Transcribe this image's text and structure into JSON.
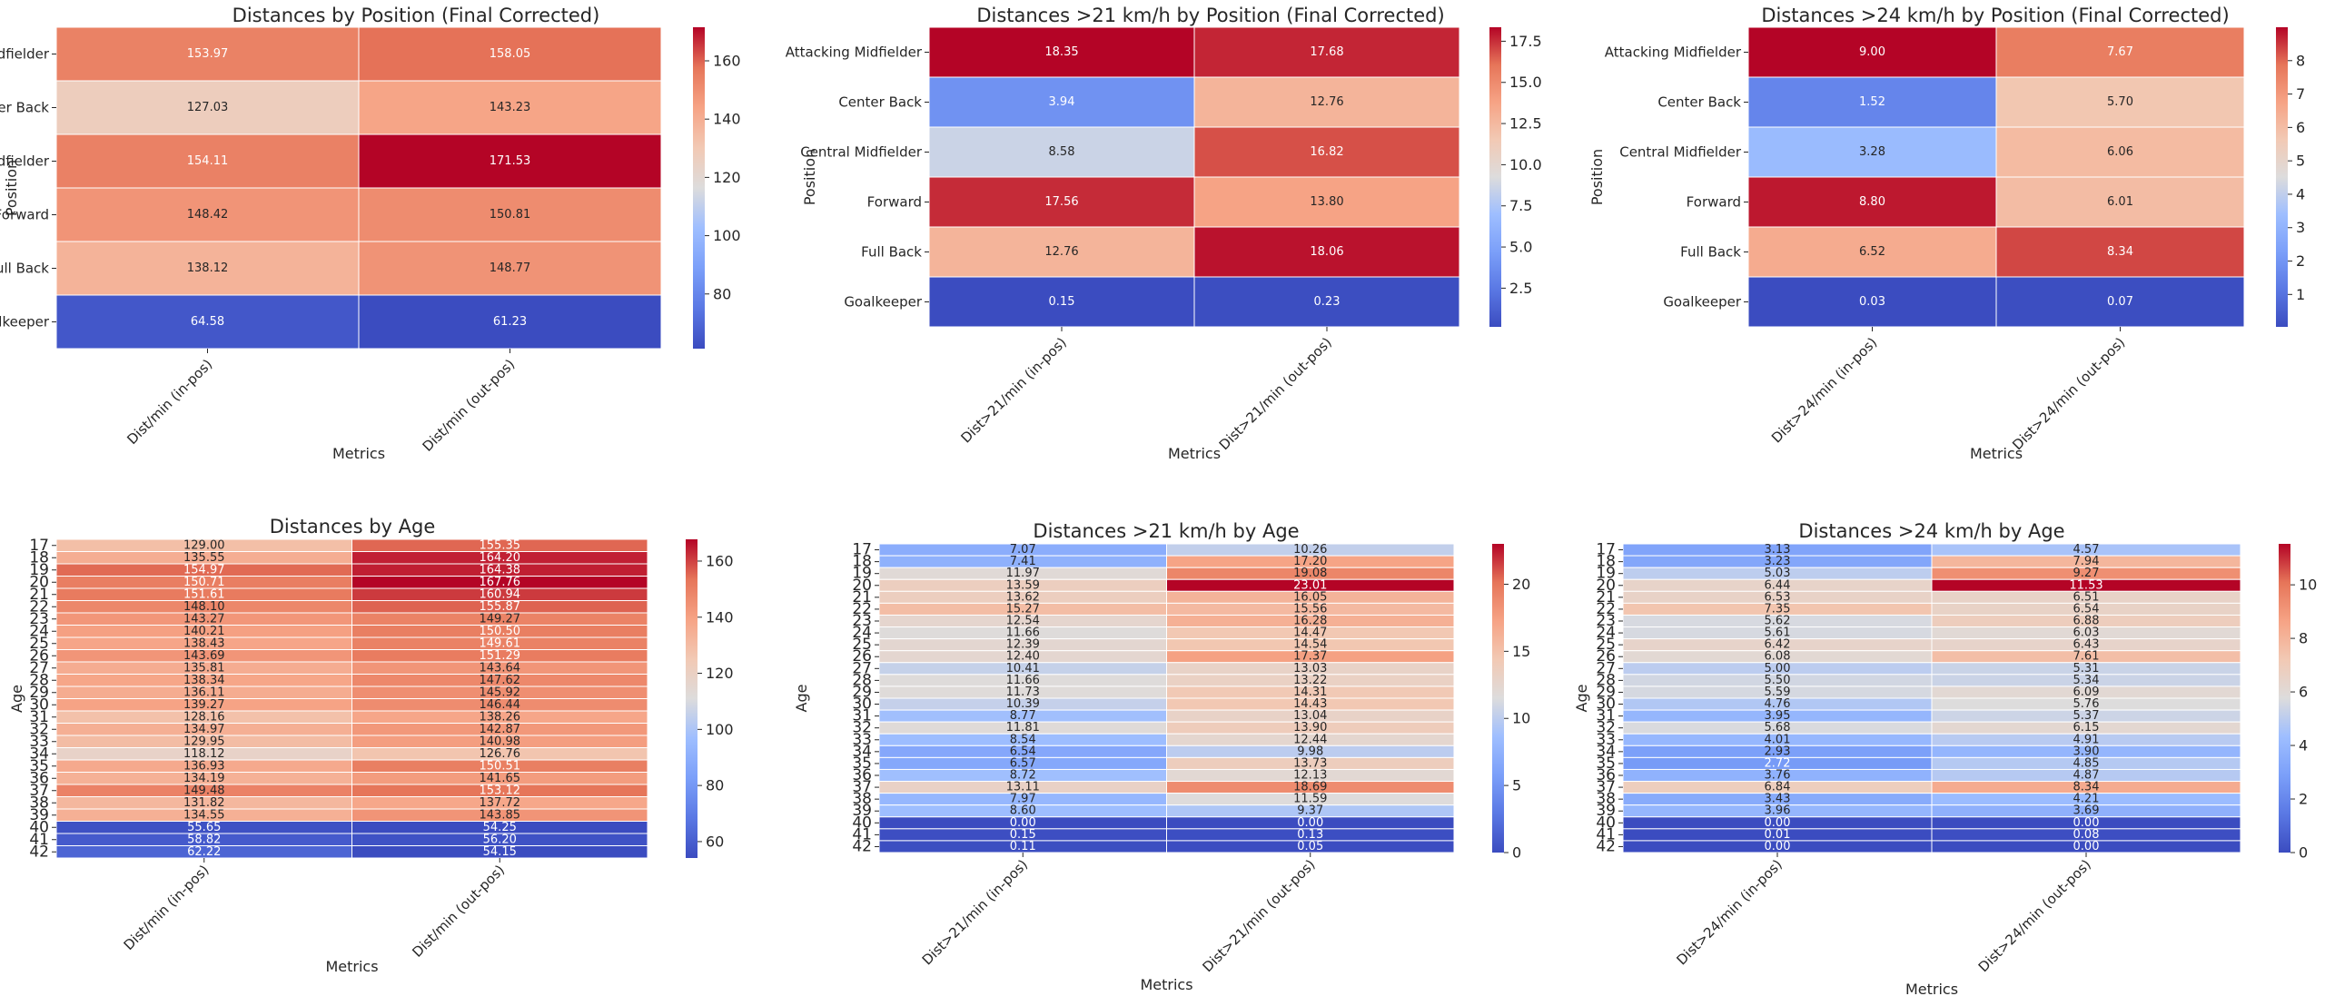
{
  "chart_data": [
    {
      "type": "heatmap",
      "title": "Distances by Position (Final Corrected)",
      "xlabel": "Metrics",
      "ylabel": "Position",
      "x": [
        "Dist/min (in-pos)",
        "Dist/min (out-pos)"
      ],
      "y": [
        "Attacking Midfielder",
        "Center Back",
        "Central Midfielder",
        "Forward",
        "Full Back",
        "Goalkeeper"
      ],
      "values": [
        [
          153.97,
          158.05
        ],
        [
          127.03,
          143.23
        ],
        [
          154.11,
          171.53
        ],
        [
          148.42,
          150.81
        ],
        [
          138.12,
          148.77
        ],
        [
          64.58,
          61.23
        ]
      ],
      "value_labels": [
        [
          "153.97",
          "158.05"
        ],
        [
          "127.03",
          "143.23"
        ],
        [
          "154.11",
          "171.53"
        ],
        [
          "148.42",
          "150.81"
        ],
        [
          "138.12",
          "148.77"
        ],
        [
          "64.58",
          "61.23"
        ]
      ],
      "colormap": "coolwarm",
      "vmin": 61.23,
      "vmax": 171.53,
      "colorbar_ticks": [
        80,
        100,
        120,
        140,
        160
      ]
    },
    {
      "type": "heatmap",
      "title": "Distances >21 km/h by Position (Final Corrected)",
      "xlabel": "Metrics",
      "ylabel": "Position",
      "x": [
        "Dist>21/min (in-pos)",
        "Dist>21/min (out-pos)"
      ],
      "y": [
        "Attacking Midfielder",
        "Center Back",
        "Central Midfielder",
        "Forward",
        "Full Back",
        "Goalkeeper"
      ],
      "values": [
        [
          18.35,
          17.68
        ],
        [
          3.94,
          12.76
        ],
        [
          8.58,
          16.82
        ],
        [
          17.56,
          13.8
        ],
        [
          12.76,
          18.06
        ],
        [
          0.15,
          0.23
        ]
      ],
      "value_labels": [
        [
          "18.35",
          "17.68"
        ],
        [
          "3.94",
          "12.76"
        ],
        [
          "8.58",
          "16.82"
        ],
        [
          "17.56",
          "13.80"
        ],
        [
          "12.76",
          "18.06"
        ],
        [
          "0.15",
          "0.23"
        ]
      ],
      "colormap": "coolwarm",
      "vmin": 0.15,
      "vmax": 18.35,
      "colorbar_ticks": [
        2.5,
        5.0,
        7.5,
        10.0,
        12.5,
        15.0,
        17.5
      ],
      "colorbar_tick_labels": [
        "2.5",
        "5.0",
        "7.5",
        "10.0",
        "12.5",
        "15.0",
        "17.5"
      ]
    },
    {
      "type": "heatmap",
      "title": "Distances >24 km/h by Position (Final Corrected)",
      "xlabel": "Metrics",
      "ylabel": "Position",
      "x": [
        "Dist>24/min (in-pos)",
        "Dist>24/min (out-pos)"
      ],
      "y": [
        "Attacking Midfielder",
        "Center Back",
        "Central Midfielder",
        "Forward",
        "Full Back",
        "Goalkeeper"
      ],
      "values": [
        [
          9.0,
          7.67
        ],
        [
          1.52,
          5.7
        ],
        [
          3.28,
          6.06
        ],
        [
          8.8,
          6.01
        ],
        [
          6.52,
          8.34
        ],
        [
          0.03,
          0.07
        ]
      ],
      "value_labels": [
        [
          "9.00",
          "7.67"
        ],
        [
          "1.52",
          "5.70"
        ],
        [
          "3.28",
          "6.06"
        ],
        [
          "8.80",
          "6.01"
        ],
        [
          "6.52",
          "8.34"
        ],
        [
          "0.03",
          "0.07"
        ]
      ],
      "colormap": "coolwarm",
      "vmin": 0.03,
      "vmax": 9.0,
      "colorbar_ticks": [
        1,
        2,
        3,
        4,
        5,
        6,
        7,
        8
      ]
    },
    {
      "type": "heatmap",
      "title": "Distances by Age",
      "xlabel": "Metrics",
      "ylabel": "Age",
      "x": [
        "Dist/min (in-pos)",
        "Dist/min (out-pos)"
      ],
      "y": [
        "17",
        "18",
        "19",
        "20",
        "21",
        "22",
        "23",
        "24",
        "25",
        "26",
        "27",
        "28",
        "29",
        "30",
        "31",
        "32",
        "33",
        "34",
        "35",
        "36",
        "37",
        "38",
        "39",
        "40",
        "41",
        "42"
      ],
      "values": [
        [
          129.0,
          155.35
        ],
        [
          135.55,
          164.2
        ],
        [
          154.97,
          164.38
        ],
        [
          150.71,
          167.76
        ],
        [
          151.61,
          160.94
        ],
        [
          148.1,
          155.87
        ],
        [
          143.27,
          149.27
        ],
        [
          140.21,
          150.5
        ],
        [
          138.43,
          149.61
        ],
        [
          143.69,
          151.29
        ],
        [
          135.81,
          143.64
        ],
        [
          138.34,
          147.62
        ],
        [
          136.11,
          145.92
        ],
        [
          139.27,
          146.44
        ],
        [
          128.16,
          138.26
        ],
        [
          134.97,
          142.87
        ],
        [
          129.95,
          140.98
        ],
        [
          118.12,
          126.76
        ],
        [
          136.93,
          150.51
        ],
        [
          134.19,
          141.65
        ],
        [
          149.48,
          153.12
        ],
        [
          131.82,
          137.72
        ],
        [
          134.55,
          143.85
        ],
        [
          55.65,
          54.25
        ],
        [
          58.82,
          56.2
        ],
        [
          62.22,
          54.15
        ]
      ],
      "value_labels": [
        [
          "129.00",
          "155.35"
        ],
        [
          "135.55",
          "164.20"
        ],
        [
          "154.97",
          "164.38"
        ],
        [
          "150.71",
          "167.76"
        ],
        [
          "151.61",
          "160.94"
        ],
        [
          "148.10",
          "155.87"
        ],
        [
          "143.27",
          "149.27"
        ],
        [
          "140.21",
          "150.50"
        ],
        [
          "138.43",
          "149.61"
        ],
        [
          "143.69",
          "151.29"
        ],
        [
          "135.81",
          "143.64"
        ],
        [
          "138.34",
          "147.62"
        ],
        [
          "136.11",
          "145.92"
        ],
        [
          "139.27",
          "146.44"
        ],
        [
          "128.16",
          "138.26"
        ],
        [
          "134.97",
          "142.87"
        ],
        [
          "129.95",
          "140.98"
        ],
        [
          "118.12",
          "126.76"
        ],
        [
          "136.93",
          "150.51"
        ],
        [
          "134.19",
          "141.65"
        ],
        [
          "149.48",
          "153.12"
        ],
        [
          "131.82",
          "137.72"
        ],
        [
          "134.55",
          "143.85"
        ],
        [
          "55.65",
          "54.25"
        ],
        [
          "58.82",
          "56.20"
        ],
        [
          "62.22",
          "54.15"
        ]
      ],
      "colormap": "coolwarm",
      "vmin": 54.15,
      "vmax": 167.76,
      "colorbar_ticks": [
        60,
        80,
        100,
        120,
        140,
        160
      ]
    },
    {
      "type": "heatmap",
      "title": "Distances >21 km/h by Age",
      "xlabel": "Metrics",
      "ylabel": "Age",
      "x": [
        "Dist>21/min (in-pos)",
        "Dist>21/min (out-pos)"
      ],
      "y": [
        "17",
        "18",
        "19",
        "20",
        "21",
        "22",
        "23",
        "24",
        "25",
        "26",
        "27",
        "28",
        "29",
        "30",
        "31",
        "32",
        "33",
        "34",
        "35",
        "36",
        "37",
        "38",
        "39",
        "40",
        "41",
        "42"
      ],
      "values": [
        [
          7.07,
          10.26
        ],
        [
          7.41,
          17.2
        ],
        [
          11.97,
          19.08
        ],
        [
          13.59,
          23.01
        ],
        [
          13.62,
          16.05
        ],
        [
          15.27,
          15.56
        ],
        [
          12.54,
          16.28
        ],
        [
          11.66,
          14.47
        ],
        [
          12.39,
          14.54
        ],
        [
          12.4,
          17.37
        ],
        [
          10.41,
          13.03
        ],
        [
          11.66,
          13.22
        ],
        [
          11.73,
          14.31
        ],
        [
          10.39,
          14.43
        ],
        [
          8.77,
          13.04
        ],
        [
          11.81,
          13.9
        ],
        [
          8.54,
          12.44
        ],
        [
          6.54,
          9.98
        ],
        [
          6.57,
          13.73
        ],
        [
          8.72,
          12.13
        ],
        [
          13.11,
          18.69
        ],
        [
          7.97,
          11.59
        ],
        [
          8.6,
          9.37
        ],
        [
          0.0,
          0.0
        ],
        [
          0.15,
          0.13
        ],
        [
          0.11,
          0.05
        ]
      ],
      "value_labels": [
        [
          "7.07",
          "10.26"
        ],
        [
          "7.41",
          "17.20"
        ],
        [
          "11.97",
          "19.08"
        ],
        [
          "13.59",
          "23.01"
        ],
        [
          "13.62",
          "16.05"
        ],
        [
          "15.27",
          "15.56"
        ],
        [
          "12.54",
          "16.28"
        ],
        [
          "11.66",
          "14.47"
        ],
        [
          "12.39",
          "14.54"
        ],
        [
          "12.40",
          "17.37"
        ],
        [
          "10.41",
          "13.03"
        ],
        [
          "11.66",
          "13.22"
        ],
        [
          "11.73",
          "14.31"
        ],
        [
          "10.39",
          "14.43"
        ],
        [
          "8.77",
          "13.04"
        ],
        [
          "11.81",
          "13.90"
        ],
        [
          "8.54",
          "12.44"
        ],
        [
          "6.54",
          "9.98"
        ],
        [
          "6.57",
          "13.73"
        ],
        [
          "8.72",
          "12.13"
        ],
        [
          "13.11",
          "18.69"
        ],
        [
          "7.97",
          "11.59"
        ],
        [
          "8.60",
          "9.37"
        ],
        [
          "0.00",
          "0.00"
        ],
        [
          "0.15",
          "0.13"
        ],
        [
          "0.11",
          "0.05"
        ]
      ],
      "colormap": "coolwarm",
      "vmin": 0.0,
      "vmax": 23.01,
      "colorbar_ticks": [
        0,
        5,
        10,
        15,
        20
      ]
    },
    {
      "type": "heatmap",
      "title": "Distances >24 km/h by Age",
      "xlabel": "Metrics",
      "ylabel": "Age",
      "x": [
        "Dist>24/min (in-pos)",
        "Dist>24/min (out-pos)"
      ],
      "y": [
        "17",
        "18",
        "19",
        "20",
        "21",
        "22",
        "23",
        "24",
        "25",
        "26",
        "27",
        "28",
        "29",
        "30",
        "31",
        "32",
        "33",
        "34",
        "35",
        "36",
        "37",
        "38",
        "39",
        "40",
        "41",
        "42"
      ],
      "values": [
        [
          3.13,
          4.57
        ],
        [
          3.23,
          7.94
        ],
        [
          5.03,
          9.27
        ],
        [
          6.44,
          11.53
        ],
        [
          6.53,
          6.51
        ],
        [
          7.35,
          6.54
        ],
        [
          5.62,
          6.88
        ],
        [
          5.61,
          6.03
        ],
        [
          6.42,
          6.43
        ],
        [
          6.08,
          7.61
        ],
        [
          5.0,
          5.31
        ],
        [
          5.5,
          5.34
        ],
        [
          5.59,
          6.09
        ],
        [
          4.76,
          5.76
        ],
        [
          3.95,
          5.37
        ],
        [
          5.68,
          6.15
        ],
        [
          4.01,
          4.91
        ],
        [
          2.93,
          3.9
        ],
        [
          2.72,
          4.85
        ],
        [
          3.76,
          4.87
        ],
        [
          6.84,
          8.34
        ],
        [
          3.43,
          4.21
        ],
        [
          3.96,
          3.69
        ],
        [
          0.0,
          0.0
        ],
        [
          0.01,
          0.08
        ],
        [
          0.0,
          0.0
        ]
      ],
      "value_labels": [
        [
          "3.13",
          "4.57"
        ],
        [
          "3.23",
          "7.94"
        ],
        [
          "5.03",
          "9.27"
        ],
        [
          "6.44",
          "11.53"
        ],
        [
          "6.53",
          "6.51"
        ],
        [
          "7.35",
          "6.54"
        ],
        [
          "5.62",
          "6.88"
        ],
        [
          "5.61",
          "6.03"
        ],
        [
          "6.42",
          "6.43"
        ],
        [
          "6.08",
          "7.61"
        ],
        [
          "5.00",
          "5.31"
        ],
        [
          "5.50",
          "5.34"
        ],
        [
          "5.59",
          "6.09"
        ],
        [
          "4.76",
          "5.76"
        ],
        [
          "3.95",
          "5.37"
        ],
        [
          "5.68",
          "6.15"
        ],
        [
          "4.01",
          "4.91"
        ],
        [
          "2.93",
          "3.90"
        ],
        [
          "2.72",
          "4.85"
        ],
        [
          "3.76",
          "4.87"
        ],
        [
          "6.84",
          "8.34"
        ],
        [
          "3.43",
          "4.21"
        ],
        [
          "3.96",
          "3.69"
        ],
        [
          "0.00",
          "0.00"
        ],
        [
          "0.01",
          "0.08"
        ],
        [
          "0.00",
          "0.00"
        ]
      ],
      "colormap": "coolwarm",
      "vmin": 0.0,
      "vmax": 11.53,
      "colorbar_ticks": [
        0,
        2,
        4,
        6,
        8,
        10
      ]
    }
  ]
}
